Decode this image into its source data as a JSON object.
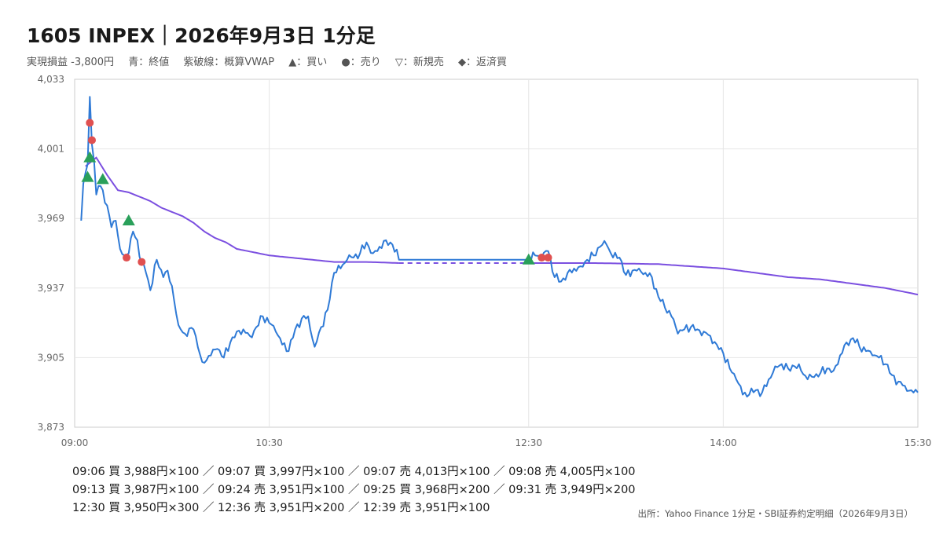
{
  "title": "1605 INPEX｜2026年9月3日 1分足",
  "legend": [
    "実現損益 -3,800円",
    "青：終値",
    "紫破線：概算VWAP",
    "▲：買い",
    "●：売り",
    "▽：新規売",
    "◆：返済買"
  ],
  "colors": {
    "close": "#2f7ad6",
    "vwap": "#7b4fe0",
    "buy": "#2aa05a",
    "sell": "#e05050",
    "grid": "#e6e6e6",
    "frame": "#cccccc"
  },
  "trades_text": [
    "09:06 買 3,988円×100 ／ 09:07 買 3,997円×100 ／ 09:07 売 4,013円×100 ／ 09:08 売 4,005円×100",
    "09:13 買 3,987円×100 ／ 09:24 売 3,951円×100 ／ 09:25 買 3,968円×200 ／ 09:31 売 3,949円×200",
    "12:30 買 3,950円×300 ／ 12:36 売 3,951円×200 ／ 12:39 売 3,951円×100"
  ],
  "source": "出所：Yahoo Finance 1分足・SBI証券約定明細（2026年9月3日）",
  "chart_data": {
    "type": "line",
    "y_ticks": [
      "4,033",
      "4,001",
      "3,969",
      "3,937",
      "3,905",
      "3,873"
    ],
    "x_ticks": [
      "09:00",
      "10:30",
      "12:30",
      "14:00",
      "15:30"
    ],
    "ylim": [
      3873,
      4033
    ],
    "grid": true,
    "series": [
      {
        "name": "終値",
        "points": [
          [
            "09:03",
            3968
          ],
          [
            "09:04",
            3985
          ],
          [
            "09:05",
            3990
          ],
          [
            "09:06",
            3994
          ],
          [
            "09:07",
            4025
          ],
          [
            "09:08",
            4003
          ],
          [
            "09:09",
            3995
          ],
          [
            "09:10",
            3980
          ],
          [
            "09:11",
            3984
          ],
          [
            "09:13",
            3982
          ],
          [
            "09:15",
            3975
          ],
          [
            "09:17",
            3965
          ],
          [
            "09:19",
            3968
          ],
          [
            "09:21",
            3955
          ],
          [
            "09:23",
            3952
          ],
          [
            "09:25",
            3953
          ],
          [
            "09:27",
            3963
          ],
          [
            "09:29",
            3959
          ],
          [
            "09:31",
            3948
          ],
          [
            "09:33",
            3944
          ],
          [
            "09:35",
            3936
          ],
          [
            "09:38",
            3950
          ],
          [
            "09:41",
            3942
          ],
          [
            "09:43",
            3945
          ],
          [
            "09:45",
            3938
          ],
          [
            "09:48",
            3920
          ],
          [
            "09:51",
            3916
          ],
          [
            "09:55",
            3918
          ],
          [
            "09:59",
            3903
          ],
          [
            "10:03",
            3906
          ],
          [
            "10:06",
            3909
          ],
          [
            "10:09",
            3905
          ],
          [
            "10:12",
            3912
          ],
          [
            "10:15",
            3917
          ],
          [
            "10:18",
            3918
          ],
          [
            "10:21",
            3915
          ],
          [
            "10:24",
            3919
          ],
          [
            "10:27",
            3924
          ],
          [
            "10:30",
            3921
          ],
          [
            "10:33",
            3917
          ],
          [
            "10:36",
            3911
          ],
          [
            "10:39",
            3908
          ],
          [
            "10:42",
            3918
          ],
          [
            "10:45",
            3923
          ],
          [
            "10:48",
            3924
          ],
          [
            "10:51",
            3910
          ],
          [
            "10:54",
            3919
          ],
          [
            "10:57",
            3927
          ],
          [
            "11:00",
            3944
          ],
          [
            "11:03",
            3946
          ],
          [
            "11:06",
            3950
          ],
          [
            "11:09",
            3951
          ],
          [
            "11:12",
            3953
          ],
          [
            "11:15",
            3958
          ],
          [
            "11:18",
            3953
          ],
          [
            "11:21",
            3956
          ],
          [
            "11:24",
            3959
          ],
          [
            "11:27",
            3957
          ],
          [
            "11:30",
            3950
          ],
          [
            "12:30",
            3950
          ],
          [
            "12:33",
            3952
          ],
          [
            "12:36",
            3951
          ],
          [
            "12:39",
            3954
          ],
          [
            "12:42",
            3942
          ],
          [
            "12:45",
            3940
          ],
          [
            "12:48",
            3944
          ],
          [
            "12:51",
            3946
          ],
          [
            "12:54",
            3947
          ],
          [
            "12:57",
            3950
          ],
          [
            "13:00",
            3952
          ],
          [
            "13:03",
            3956
          ],
          [
            "13:06",
            3957
          ],
          [
            "13:09",
            3951
          ],
          [
            "13:12",
            3951
          ],
          [
            "13:15",
            3943
          ],
          [
            "13:18",
            3945
          ],
          [
            "13:21",
            3946
          ],
          [
            "13:24",
            3944
          ],
          [
            "13:27",
            3942
          ],
          [
            "13:30",
            3933
          ],
          [
            "13:33",
            3928
          ],
          [
            "13:36",
            3924
          ],
          [
            "13:39",
            3916
          ],
          [
            "13:42",
            3918
          ],
          [
            "13:45",
            3919
          ],
          [
            "13:48",
            3918
          ],
          [
            "13:51",
            3917
          ],
          [
            "13:54",
            3915
          ],
          [
            "13:57",
            3911
          ],
          [
            "14:00",
            3907
          ],
          [
            "14:03",
            3900
          ],
          [
            "14:06",
            3895
          ],
          [
            "14:09",
            3888
          ],
          [
            "14:12",
            3888
          ],
          [
            "14:15",
            3890
          ],
          [
            "14:18",
            3889
          ],
          [
            "14:21",
            3895
          ],
          [
            "14:24",
            3901
          ],
          [
            "14:27",
            3902
          ],
          [
            "14:30",
            3900
          ],
          [
            "14:33",
            3901
          ],
          [
            "14:36",
            3899
          ],
          [
            "14:39",
            3895
          ],
          [
            "14:42",
            3896
          ],
          [
            "14:45",
            3898
          ],
          [
            "14:48",
            3900
          ],
          [
            "14:51",
            3899
          ],
          [
            "14:54",
            3906
          ],
          [
            "14:57",
            3912
          ],
          [
            "15:00",
            3914
          ],
          [
            "15:03",
            3910
          ],
          [
            "15:06",
            3908
          ],
          [
            "15:09",
            3906
          ],
          [
            "15:12",
            3905
          ],
          [
            "15:15",
            3902
          ],
          [
            "15:18",
            3897
          ],
          [
            "15:21",
            3894
          ],
          [
            "15:24",
            3892
          ],
          [
            "15:27",
            3890
          ],
          [
            "15:30",
            3889
          ]
        ]
      },
      {
        "name": "概算VWAP",
        "points": [
          [
            "09:05",
            3993
          ],
          [
            "09:10",
            3997
          ],
          [
            "09:15",
            3989
          ],
          [
            "09:20",
            3982
          ],
          [
            "09:25",
            3981
          ],
          [
            "09:30",
            3979
          ],
          [
            "09:35",
            3977
          ],
          [
            "09:40",
            3974
          ],
          [
            "09:45",
            3972
          ],
          [
            "09:50",
            3970
          ],
          [
            "09:55",
            3967
          ],
          [
            "10:00",
            3963
          ],
          [
            "10:05",
            3960
          ],
          [
            "10:10",
            3958
          ],
          [
            "10:15",
            3955
          ],
          [
            "10:20",
            3954
          ],
          [
            "10:30",
            3952
          ],
          [
            "10:40",
            3951
          ],
          [
            "10:50",
            3950
          ],
          [
            "11:00",
            3949
          ],
          [
            "11:15",
            3949
          ],
          [
            "11:30",
            3948.5
          ],
          [
            "12:30",
            3948.5
          ],
          [
            "13:00",
            3948.5
          ],
          [
            "13:30",
            3948
          ],
          [
            "13:45",
            3947
          ],
          [
            "14:00",
            3946
          ],
          [
            "14:15",
            3944
          ],
          [
            "14:30",
            3942
          ],
          [
            "14:45",
            3941
          ],
          [
            "15:00",
            3939
          ],
          [
            "15:15",
            3937
          ],
          [
            "15:30",
            3934
          ]
        ]
      }
    ],
    "markers": [
      {
        "time": "09:06",
        "price": 3988,
        "side": "買",
        "qty": 100
      },
      {
        "time": "09:07",
        "price": 3997,
        "side": "買",
        "qty": 100
      },
      {
        "time": "09:07",
        "price": 4013,
        "side": "売",
        "qty": 100
      },
      {
        "time": "09:08",
        "price": 4005,
        "side": "売",
        "qty": 100
      },
      {
        "time": "09:13",
        "price": 3987,
        "side": "買",
        "qty": 100
      },
      {
        "time": "09:24",
        "price": 3951,
        "side": "売",
        "qty": 100
      },
      {
        "time": "09:25",
        "price": 3968,
        "side": "買",
        "qty": 200
      },
      {
        "time": "09:31",
        "price": 3949,
        "side": "売",
        "qty": 200
      },
      {
        "time": "12:30",
        "price": 3950,
        "side": "買",
        "qty": 300
      },
      {
        "time": "12:36",
        "price": 3951,
        "side": "売",
        "qty": 200
      },
      {
        "time": "12:39",
        "price": 3951,
        "side": "売",
        "qty": 100
      }
    ]
  }
}
